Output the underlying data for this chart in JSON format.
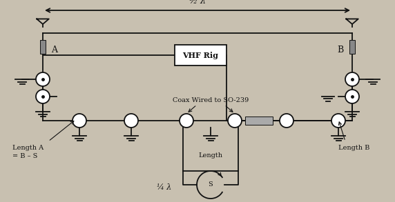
{
  "bg_color": "#c8c0b0",
  "line_color": "#111111",
  "fig_width": 5.72,
  "fig_height": 2.93,
  "dpi": 100,
  "half_lambda_text": "½ λ",
  "vhf_text": "VHF Rig",
  "coax_label": "Coax Wired to SO-239",
  "length_label": "Length",
  "length_A_text": "Length A\n= B – S",
  "length_B_text": "Length B",
  "quarter_lambda_text": "¼ λ",
  "S_text": "S"
}
